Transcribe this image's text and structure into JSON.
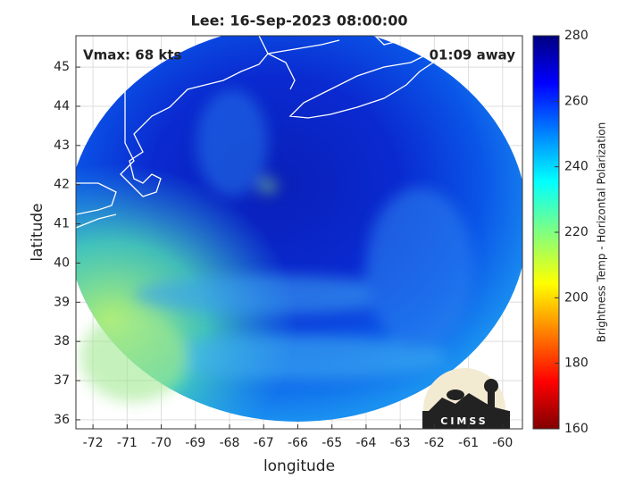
{
  "chart_data": {
    "type": "image-map",
    "title": "Lee: 16-Sep-2023 08:00:00",
    "xlabel": "longitude",
    "ylabel": "latitude",
    "xlim": [
      -72.5,
      -59.42
    ],
    "ylim": [
      35.77,
      45.8
    ],
    "xticks": [
      -72,
      -71,
      -70,
      -69,
      -68,
      -67,
      -66,
      -65,
      -64,
      -63,
      -62,
      -61,
      -60
    ],
    "yticks": [
      36,
      37,
      38,
      39,
      40,
      41,
      42,
      43,
      44,
      45
    ],
    "grid": true,
    "annotations": [
      "Vmax: 68 kts",
      "01:09 away"
    ],
    "colorbar": {
      "label": "Brightness Temp - Horizontal Polarization",
      "lim": [
        160,
        280
      ],
      "ticks": [
        160,
        180,
        200,
        220,
        240,
        260,
        280
      ],
      "colormap": "jet"
    },
    "logo_text": "CIMSS"
  }
}
